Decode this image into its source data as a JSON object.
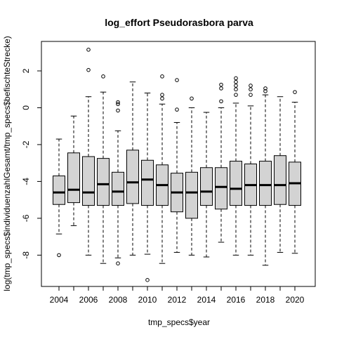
{
  "chart_data": {
    "type": "boxplot",
    "title": "log_effort Pseudorasbora parva",
    "xlabel": "tmp_specs$year",
    "ylabel": "log(tmp_specs$individuenzahlGesamt/tmp_specs$befischteStrecke)",
    "categories": [
      "2004",
      "2005",
      "2006",
      "2007",
      "2008",
      "2009",
      "2010",
      "2011",
      "2012",
      "2013",
      "2014",
      "2015",
      "2016",
      "2017",
      "2018",
      "2019",
      "2020"
    ],
    "x_tick_labels": [
      "2004",
      "2006",
      "2008",
      "2010",
      "2012",
      "2014",
      "2016",
      "2018",
      "2020"
    ],
    "y_ticks": [
      -8,
      -6,
      -4,
      -2,
      0,
      2
    ],
    "ylim": [
      -9.7,
      3.6
    ],
    "box_fill": "#d3d3d3",
    "boxes": [
      {
        "year": "2004",
        "lower_whisker": -6.85,
        "q1": -5.25,
        "median": -4.6,
        "q3": -3.7,
        "upper_whisker": -1.7,
        "outliers": [
          -8.0
        ]
      },
      {
        "year": "2005",
        "lower_whisker": -6.4,
        "q1": -5.15,
        "median": -4.45,
        "q3": -2.45,
        "upper_whisker": -0.45,
        "outliers": []
      },
      {
        "year": "2006",
        "lower_whisker": -8.0,
        "q1": -5.3,
        "median": -4.6,
        "q3": -2.65,
        "upper_whisker": 0.6,
        "outliers": [
          2.05,
          3.15
        ]
      },
      {
        "year": "2007",
        "lower_whisker": -8.45,
        "q1": -5.3,
        "median": -4.15,
        "q3": -2.75,
        "upper_whisker": 0.85,
        "outliers": [
          1.7
        ]
      },
      {
        "year": "2008",
        "lower_whisker": -8.15,
        "q1": -5.3,
        "median": -4.55,
        "q3": -3.5,
        "upper_whisker": -1.25,
        "outliers": [
          -0.15,
          0.2,
          0.3,
          -8.45
        ]
      },
      {
        "year": "2009",
        "lower_whisker": -8.0,
        "q1": -5.2,
        "median": -4.05,
        "q3": -2.3,
        "upper_whisker": 1.4,
        "outliers": []
      },
      {
        "year": "2010",
        "lower_whisker": -7.95,
        "q1": -5.3,
        "median": -3.9,
        "q3": -2.85,
        "upper_whisker": 0.8,
        "outliers": [
          -9.35
        ]
      },
      {
        "year": "2011",
        "lower_whisker": -8.45,
        "q1": -5.3,
        "median": -4.2,
        "q3": -3.1,
        "upper_whisker": 0.2,
        "outliers": [
          0.5,
          0.7,
          1.7
        ]
      },
      {
        "year": "2012",
        "lower_whisker": -7.85,
        "q1": -5.65,
        "median": -4.6,
        "q3": -3.55,
        "upper_whisker": -0.8,
        "outliers": [
          -0.1,
          1.5
        ]
      },
      {
        "year": "2013",
        "lower_whisker": -8.0,
        "q1": -6.0,
        "median": -4.6,
        "q3": -3.5,
        "upper_whisker": 0.0,
        "outliers": [
          0.5
        ]
      },
      {
        "year": "2014",
        "lower_whisker": -8.1,
        "q1": -5.3,
        "median": -4.55,
        "q3": -3.25,
        "upper_whisker": -0.25,
        "outliers": []
      },
      {
        "year": "2015",
        "lower_whisker": -7.3,
        "q1": -5.5,
        "median": -4.3,
        "q3": -3.25,
        "upper_whisker": 0.0,
        "outliers": [
          0.35,
          1.05,
          1.25
        ]
      },
      {
        "year": "2016",
        "lower_whisker": -8.0,
        "q1": -5.3,
        "median": -4.4,
        "q3": -2.9,
        "upper_whisker": 0.25,
        "outliers": [
          0.7,
          1.0,
          1.2,
          1.4,
          1.6
        ]
      },
      {
        "year": "2017",
        "lower_whisker": -8.0,
        "q1": -5.3,
        "median": -4.2,
        "q3": -3.05,
        "upper_whisker": 0.1,
        "outliers": [
          0.7,
          1.0,
          1.2
        ]
      },
      {
        "year": "2018",
        "lower_whisker": -8.55,
        "q1": -5.3,
        "median": -4.2,
        "q3": -2.9,
        "upper_whisker": 0.7,
        "outliers": [
          0.9,
          1.05
        ]
      },
      {
        "year": "2019",
        "lower_whisker": -7.85,
        "q1": -5.25,
        "median": -4.2,
        "q3": -2.6,
        "upper_whisker": 0.6,
        "outliers": []
      },
      {
        "year": "2020",
        "lower_whisker": -7.9,
        "q1": -5.3,
        "median": -4.1,
        "q3": -2.95,
        "upper_whisker": 0.3,
        "outliers": [
          0.85
        ]
      }
    ]
  }
}
